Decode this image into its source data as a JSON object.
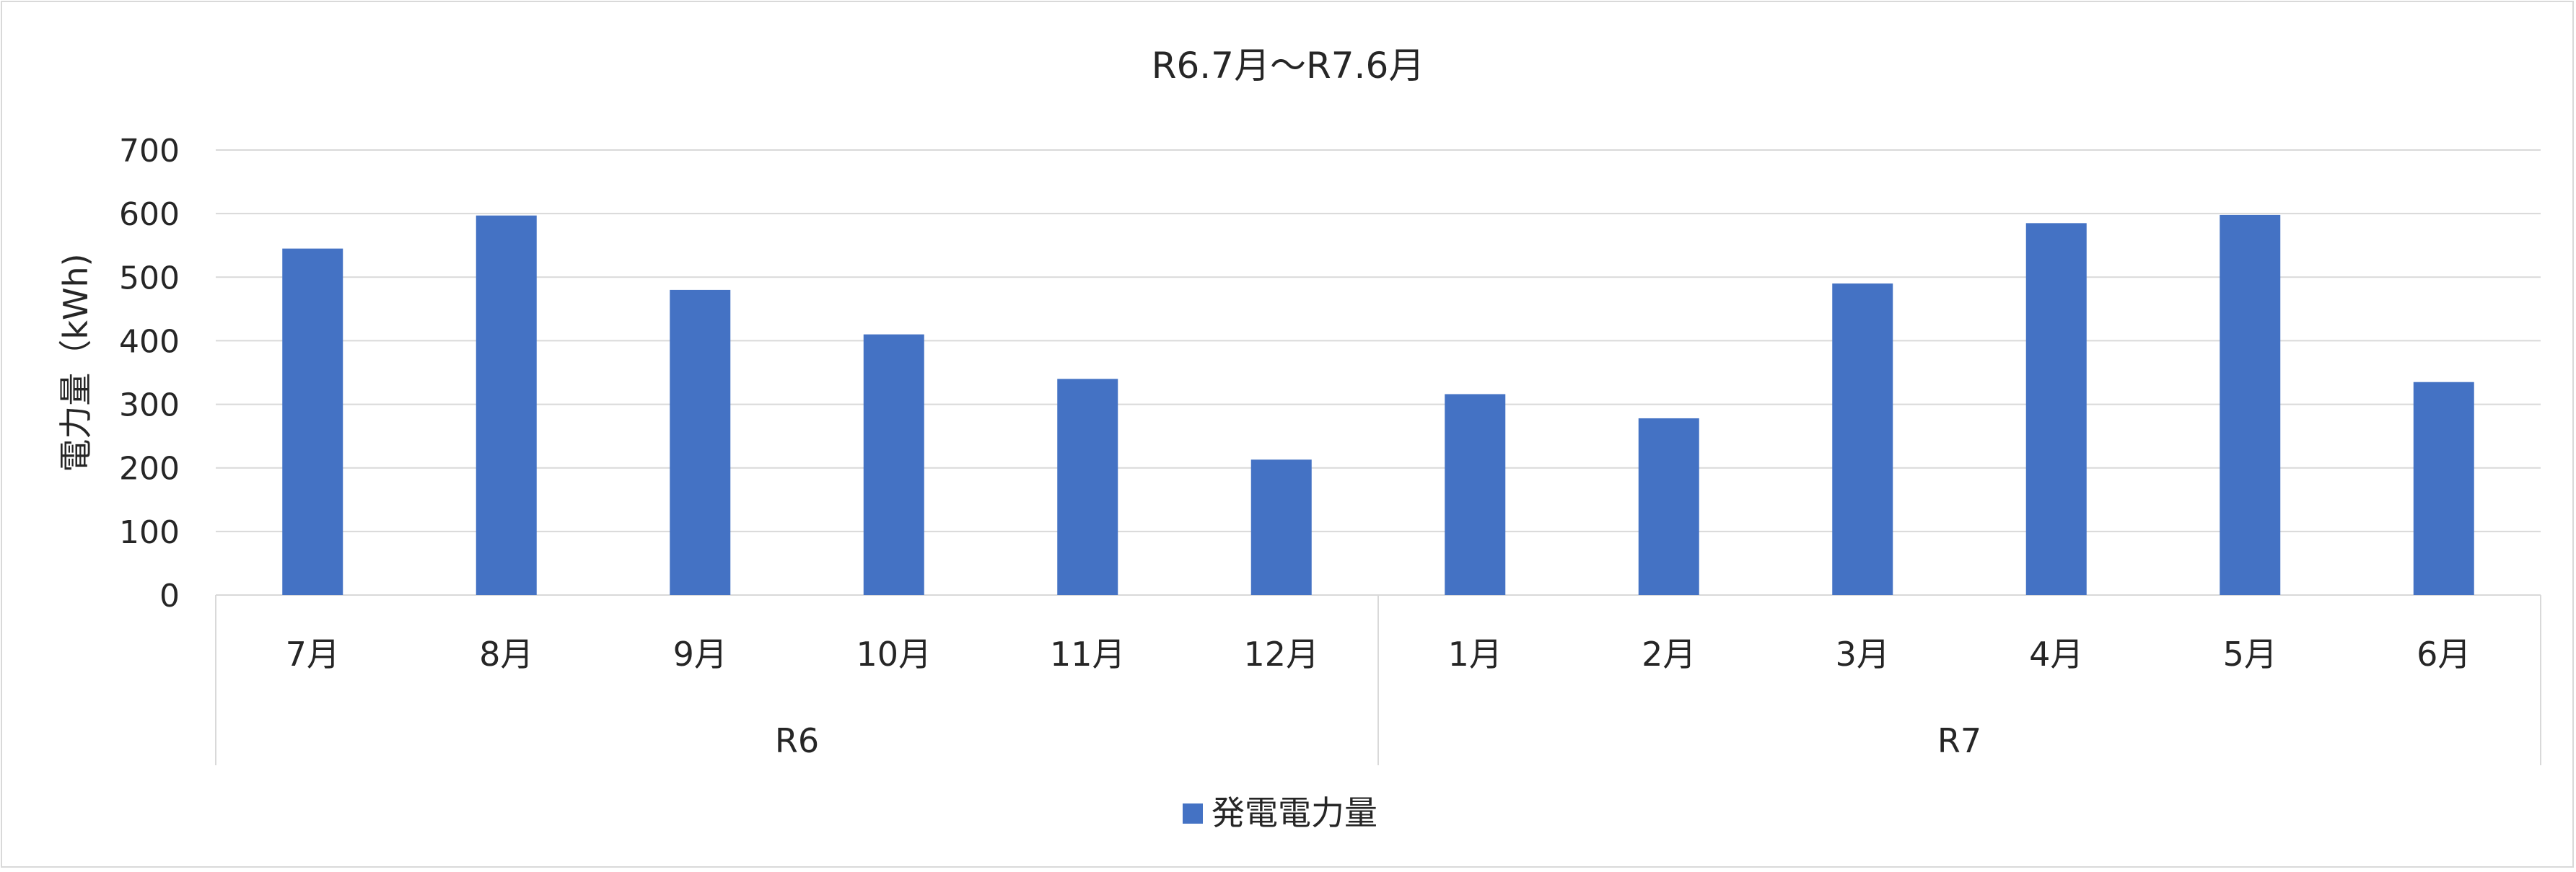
{
  "chart_data": {
    "type": "bar",
    "title": "R6.7月～R7.6月",
    "ylabel": "電力量（kWh)",
    "xlabel": "",
    "ylim": [
      0,
      700
    ],
    "yticks": [
      0,
      100,
      200,
      300,
      400,
      500,
      600,
      700
    ],
    "grid": true,
    "legend_position": "bottom",
    "categories": [
      "7月",
      "8月",
      "9月",
      "10月",
      "11月",
      "12月",
      "1月",
      "2月",
      "3月",
      "4月",
      "5月",
      "6月"
    ],
    "groups": [
      {
        "label": "R6",
        "count": 6
      },
      {
        "label": "R7",
        "count": 6
      }
    ],
    "series": [
      {
        "name": "発電電力量",
        "color": "#4472C4",
        "values": [
          545,
          597,
          480,
          410,
          340,
          213,
          316,
          278,
          490,
          585,
          598,
          335
        ]
      }
    ]
  }
}
